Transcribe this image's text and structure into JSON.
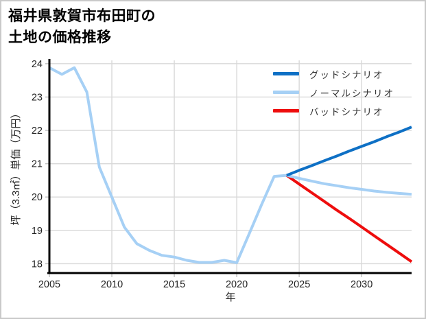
{
  "card": {
    "title_line1": "福井県敦賀市布田町の",
    "title_line2": "土地の価格推移"
  },
  "chart_data": {
    "type": "line",
    "title": "福井県敦賀市布田町の土地の価格推移",
    "xlabel": "年",
    "ylabel": "坪（3.3㎡）単価（万円）",
    "xlim": [
      2005,
      2034
    ],
    "ylim": [
      17.72,
      24.1
    ],
    "xticks": [
      2005,
      2010,
      2015,
      2020,
      2025,
      2030
    ],
    "yticks": [
      18,
      19,
      20,
      21,
      22,
      23,
      24
    ],
    "grid": true,
    "grid_color": "#d8d8d8",
    "axis_color": "#000000",
    "tick_color": "#c2c2c2",
    "tick_label_color": "#222222",
    "legend_position": "upper right",
    "colors": {
      "good": "#0e70c5",
      "normal": "#a6d0f5",
      "bad": "#ee0d0d",
      "history": "#a6d0f5"
    },
    "legend": [
      {
        "label": "グッドシナリオ",
        "color_key": "good"
      },
      {
        "label": "ノーマルシナリオ",
        "color_key": "normal"
      },
      {
        "label": "バッドシナリオ",
        "color_key": "bad"
      }
    ],
    "series": [
      {
        "name": "history",
        "color_key": "history",
        "x": [
          2005,
          2006,
          2007,
          2008,
          2009,
          2010,
          2011,
          2012,
          2013,
          2014,
          2015,
          2016,
          2017,
          2018,
          2019,
          2020,
          2021,
          2022,
          2023,
          2024
        ],
        "values": [
          23.88,
          23.68,
          23.88,
          23.15,
          20.9,
          20.0,
          19.1,
          18.6,
          18.4,
          18.25,
          18.2,
          18.1,
          18.04,
          18.04,
          18.1,
          18.03,
          18.9,
          19.78,
          20.62,
          20.65
        ]
      },
      {
        "name": "バッドシナリオ",
        "color_key": "bad",
        "x": [
          2024,
          2025,
          2026,
          2027,
          2028,
          2029,
          2030,
          2031,
          2032,
          2033,
          2034
        ],
        "values": [
          20.65,
          20.39,
          20.13,
          19.87,
          19.61,
          19.36,
          19.1,
          18.84,
          18.58,
          18.32,
          18.06
        ]
      },
      {
        "name": "ノーマルシナリオ",
        "color_key": "normal",
        "x": [
          2024,
          2025,
          2026,
          2027,
          2028,
          2029,
          2030,
          2031,
          2032,
          2033,
          2034
        ],
        "values": [
          20.65,
          20.56,
          20.48,
          20.4,
          20.34,
          20.28,
          20.23,
          20.18,
          20.14,
          20.11,
          20.08
        ]
      },
      {
        "name": "グッドシナリオ",
        "color_key": "good",
        "x": [
          2024,
          2025,
          2026,
          2027,
          2028,
          2029,
          2030,
          2031,
          2032,
          2033,
          2034
        ],
        "values": [
          20.65,
          20.8,
          20.94,
          21.09,
          21.23,
          21.38,
          21.52,
          21.66,
          21.81,
          21.95,
          22.1
        ]
      }
    ]
  }
}
